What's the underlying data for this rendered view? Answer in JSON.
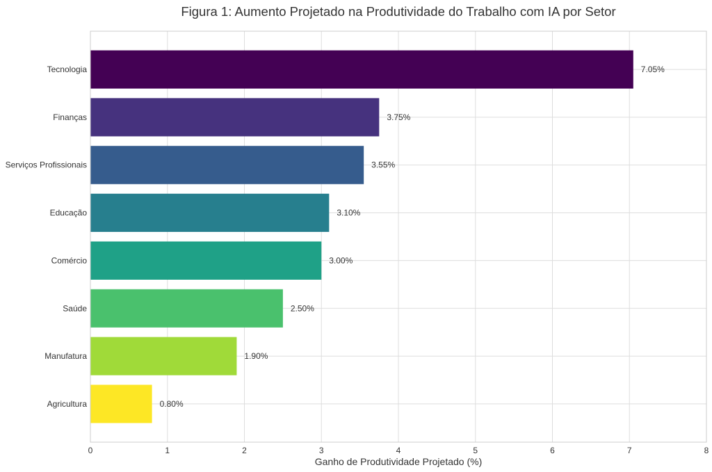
{
  "chart_data": {
    "type": "bar",
    "orientation": "horizontal",
    "title": "Figura 1: Aumento Projetado na Produtividade do Trabalho com IA por Setor",
    "xlabel": "Ganho de Produtividade Projetado (%)",
    "ylabel": "",
    "xlim": [
      0,
      8
    ],
    "xticks": [
      0,
      1,
      2,
      3,
      4,
      5,
      6,
      7,
      8
    ],
    "grid": true,
    "categories": [
      "Tecnologia",
      "Finanças",
      "Serviços Profissionais",
      "Educação",
      "Comércio",
      "Saúde",
      "Manufatura",
      "Agricultura"
    ],
    "values": [
      7.05,
      3.75,
      3.55,
      3.1,
      3.0,
      2.5,
      1.9,
      0.8
    ],
    "data_labels": [
      "7.05%",
      "3.75%",
      "3.55%",
      "3.10%",
      "3.00%",
      "2.50%",
      "1.90%",
      "0.80%"
    ],
    "colors": [
      "#440154",
      "#46327e",
      "#365c8d",
      "#277f8e",
      "#1fa187",
      "#4ac16d",
      "#a0da39",
      "#fde725"
    ]
  }
}
